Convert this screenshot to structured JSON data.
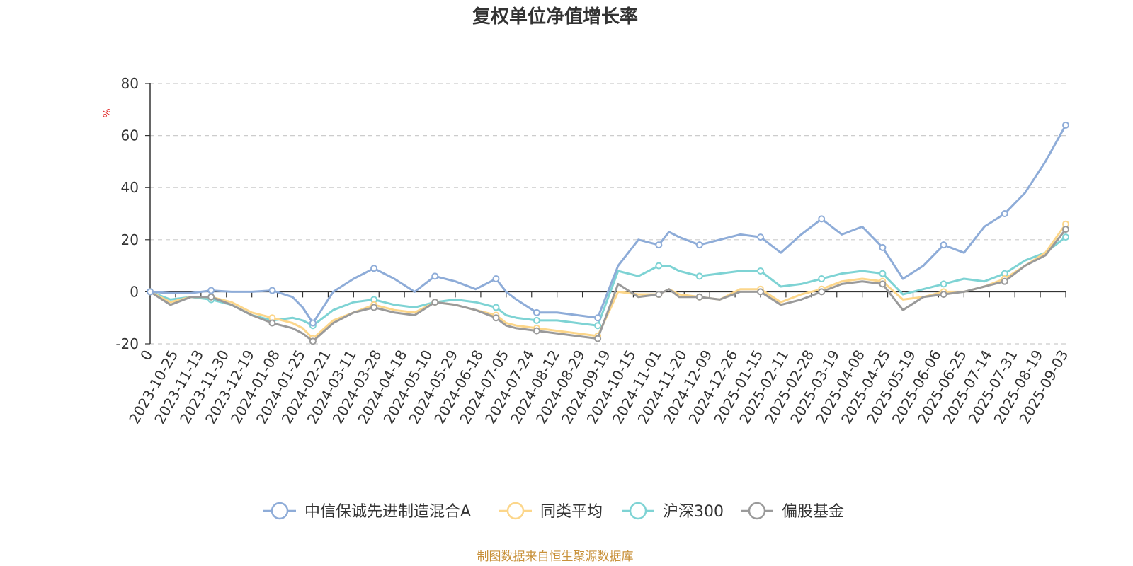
{
  "chart_data": {
    "type": "line",
    "title": "复权单位净值增长率",
    "ylabel": "%",
    "xlabel": "",
    "ylim": [
      -20,
      80
    ],
    "yticks": [
      -20,
      0,
      20,
      40,
      60,
      80
    ],
    "grid": true,
    "legend_position": "bottom",
    "x_tick_labels": [
      "0",
      "2023-10-25",
      "2023-11-13",
      "2023-11-30",
      "2023-12-19",
      "2024-01-08",
      "2024-01-25",
      "2024-02-21",
      "2024-03-11",
      "2024-03-28",
      "2024-04-18",
      "2024-05-10",
      "2024-05-29",
      "2024-06-18",
      "2024-07-05",
      "2024-07-24",
      "2024-08-12",
      "2024-08-29",
      "2024-09-19",
      "2024-10-15",
      "2024-11-01",
      "2024-11-20",
      "2024-12-09",
      "2024-12-26",
      "2025-01-15",
      "2025-02-11",
      "2025-02-28",
      "2025-03-19",
      "2025-04-08",
      "2025-04-25",
      "2025-05-19",
      "2025-06-06",
      "2025-06-25",
      "2025-07-14",
      "2025-07-31",
      "2025-08-19",
      "2025-09-03"
    ],
    "x_index": [
      0,
      0.8,
      1.6,
      2.4,
      3.2,
      4,
      4.8,
      5.6,
      6,
      6.4,
      7.2,
      8,
      8.8,
      9.6,
      10.4,
      11.2,
      12,
      12.8,
      13.6,
      14,
      14.4,
      15.2,
      16,
      16.8,
      17.6,
      18.4,
      19.2,
      20,
      20.4,
      20.8,
      21.6,
      22.4,
      23.2,
      24,
      24.8,
      25.6,
      26.4,
      27.2,
      28,
      28.8,
      29.6,
      30.4,
      31.2,
      32,
      32.8,
      33.6,
      34.4,
      35.2,
      36
    ],
    "series": [
      {
        "name": "中信保诚先进制造混合A",
        "color": "#8eacd8",
        "values": [
          0,
          -0.5,
          -0.5,
          0.5,
          0,
          0,
          0.5,
          -2,
          -6,
          -12,
          0,
          5,
          9,
          5,
          0,
          6,
          4,
          1,
          5,
          0,
          -3,
          -8,
          -8,
          -9,
          -10,
          10,
          20,
          18,
          23,
          21,
          18,
          20,
          22,
          21,
          15,
          22,
          28,
          22,
          25,
          17,
          5,
          10,
          18,
          15,
          25,
          30,
          38,
          50,
          64
        ]
      },
      {
        "name": "同类平均",
        "color": "#fcd68a",
        "values": [
          0,
          -4,
          -2,
          -2,
          -4,
          -8,
          -10,
          -12,
          -14,
          -18,
          -11,
          -8,
          -5,
          -7,
          -8,
          -4,
          -5,
          -7,
          -9,
          -12,
          -13,
          -14,
          -15,
          -16,
          -17,
          0,
          -1,
          -1,
          1,
          -1,
          -2,
          -3,
          1,
          1,
          -4,
          -1,
          1,
          4,
          5,
          4,
          -3,
          -2,
          0,
          0,
          2,
          5,
          10,
          15,
          26
        ]
      },
      {
        "name": "沪深300",
        "color": "#7ed3d4",
        "values": [
          0,
          -3,
          -2,
          -3,
          -5,
          -9,
          -11,
          -10,
          -11,
          -13,
          -7,
          -4,
          -3,
          -5,
          -6,
          -4,
          -3,
          -4,
          -6,
          -9,
          -10,
          -11,
          -11,
          -12,
          -13,
          8,
          6,
          10,
          10,
          8,
          6,
          7,
          8,
          8,
          2,
          3,
          5,
          7,
          8,
          7,
          -1,
          1,
          3,
          5,
          4,
          7,
          12,
          15,
          21
        ]
      },
      {
        "name": "偏股基金",
        "color": "#9a9a9a",
        "values": [
          0,
          -5,
          -2,
          -2,
          -5,
          -9,
          -12,
          -14,
          -16,
          -19,
          -12,
          -8,
          -6,
          -8,
          -9,
          -4,
          -5,
          -7,
          -10,
          -13,
          -14,
          -15,
          -16,
          -17,
          -18,
          3,
          -2,
          -1,
          1,
          -2,
          -2,
          -3,
          0,
          0,
          -5,
          -3,
          0,
          3,
          4,
          3,
          -7,
          -2,
          -1,
          0,
          2,
          4,
          10,
          14,
          24
        ]
      }
    ]
  },
  "footer": {
    "source": "制图数据来自恒生聚源数据库"
  }
}
